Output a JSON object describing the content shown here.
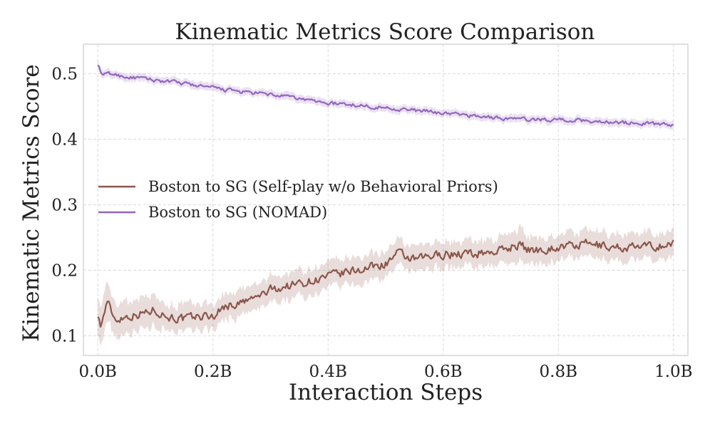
{
  "chart_data": {
    "type": "line",
    "title": "Kinematic Metrics Score Comparison",
    "xlabel": "Interaction Steps",
    "ylabel": "Kinematic Metrics Score",
    "xlim": [
      -0.025,
      1.025
    ],
    "ylim": [
      0.07,
      0.545
    ],
    "x_ticks": [
      0.0,
      0.2,
      0.4,
      0.6,
      0.8,
      1.0
    ],
    "x_tick_labels": [
      "0.0B",
      "0.2B",
      "0.4B",
      "0.6B",
      "0.8B",
      "1.0B"
    ],
    "y_ticks": [
      0.1,
      0.2,
      0.3,
      0.4,
      0.5
    ],
    "y_tick_labels": [
      "0.1",
      "0.2",
      "0.3",
      "0.4",
      "0.5"
    ],
    "x_unit": "B interaction steps",
    "grid": true,
    "legend_position": "center-left",
    "series": [
      {
        "name": "Boston to SG (Self-play w/o Behavioral Priors)",
        "color": "#8c564b",
        "band_color": "#8c564b",
        "x": [
          0.0,
          0.005,
          0.01,
          0.015,
          0.02,
          0.03,
          0.05,
          0.08,
          0.1,
          0.12,
          0.15,
          0.18,
          0.2,
          0.22,
          0.25,
          0.28,
          0.3,
          0.35,
          0.4,
          0.45,
          0.5,
          0.52,
          0.55,
          0.6,
          0.65,
          0.7,
          0.73,
          0.75,
          0.8,
          0.85,
          0.9,
          0.95,
          1.0
        ],
        "y": [
          0.135,
          0.115,
          0.13,
          0.15,
          0.145,
          0.125,
          0.13,
          0.135,
          0.14,
          0.13,
          0.125,
          0.13,
          0.13,
          0.145,
          0.15,
          0.16,
          0.17,
          0.18,
          0.19,
          0.2,
          0.21,
          0.225,
          0.215,
          0.225,
          0.225,
          0.23,
          0.24,
          0.23,
          0.235,
          0.24,
          0.235,
          0.235,
          0.24
        ],
        "band": [
          0.03,
          0.03,
          0.03,
          0.03,
          0.03,
          0.025,
          0.025,
          0.025,
          0.025,
          0.02,
          0.02,
          0.02,
          0.02,
          0.02,
          0.02,
          0.02,
          0.02,
          0.02,
          0.02,
          0.02,
          0.02,
          0.02,
          0.02,
          0.02,
          0.02,
          0.02,
          0.025,
          0.02,
          0.02,
          0.02,
          0.02,
          0.02,
          0.02
        ]
      },
      {
        "name": "Boston to SG (NOMAD)",
        "color": "#9467bd",
        "band_color": "#9467bd",
        "x": [
          0.0,
          0.003,
          0.006,
          0.01,
          0.02,
          0.05,
          0.1,
          0.15,
          0.2,
          0.25,
          0.3,
          0.35,
          0.4,
          0.45,
          0.5,
          0.55,
          0.6,
          0.65,
          0.7,
          0.75,
          0.8,
          0.85,
          0.9,
          0.95,
          1.0
        ],
        "y": [
          0.515,
          0.508,
          0.5,
          0.498,
          0.5,
          0.495,
          0.49,
          0.485,
          0.478,
          0.472,
          0.468,
          0.462,
          0.455,
          0.452,
          0.448,
          0.444,
          0.44,
          0.436,
          0.432,
          0.43,
          0.43,
          0.428,
          0.426,
          0.424,
          0.422
        ],
        "band": [
          0.006,
          0.006,
          0.006,
          0.006,
          0.006,
          0.006,
          0.006,
          0.006,
          0.006,
          0.006,
          0.006,
          0.006,
          0.006,
          0.006,
          0.006,
          0.006,
          0.006,
          0.006,
          0.006,
          0.006,
          0.006,
          0.006,
          0.006,
          0.006,
          0.006
        ]
      }
    ]
  }
}
